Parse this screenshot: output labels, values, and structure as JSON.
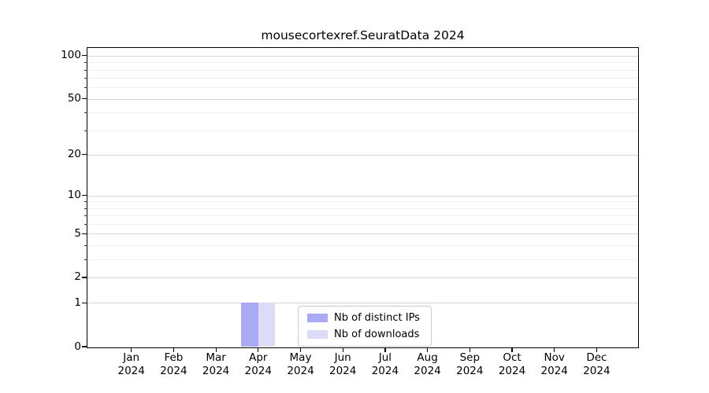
{
  "figure": {
    "background": "#ffffff"
  },
  "chart_data": {
    "type": "bar",
    "title": "mousecortexref.SeuratData 2024",
    "categories": [
      "Jan",
      "Feb",
      "Mar",
      "Apr",
      "May",
      "Jun",
      "Jul",
      "Aug",
      "Sep",
      "Oct",
      "Nov",
      "Dec"
    ],
    "category_year": "2024",
    "series": [
      {
        "name": "Nb of distinct IPs",
        "color": "#a9a9f4",
        "values": [
          0,
          0,
          0,
          1,
          0,
          0,
          0,
          0,
          0,
          0,
          0,
          0
        ]
      },
      {
        "name": "Nb of downloads",
        "color": "#dcdcf8",
        "values": [
          0,
          0,
          0,
          1,
          0,
          0,
          0,
          0,
          0,
          0,
          0,
          0
        ]
      }
    ],
    "xlabel": "",
    "ylabel": "",
    "ylim": [
      0,
      100
    ],
    "yscale": "log10(value+1)",
    "yticks_major": [
      0,
      1,
      2,
      5,
      10,
      20,
      50,
      100
    ],
    "yticks_minor": [
      3,
      4,
      6,
      7,
      8,
      9,
      30,
      40,
      60,
      70,
      80,
      90
    ],
    "grid": "horizontal",
    "legend_position": "inside lower center"
  }
}
